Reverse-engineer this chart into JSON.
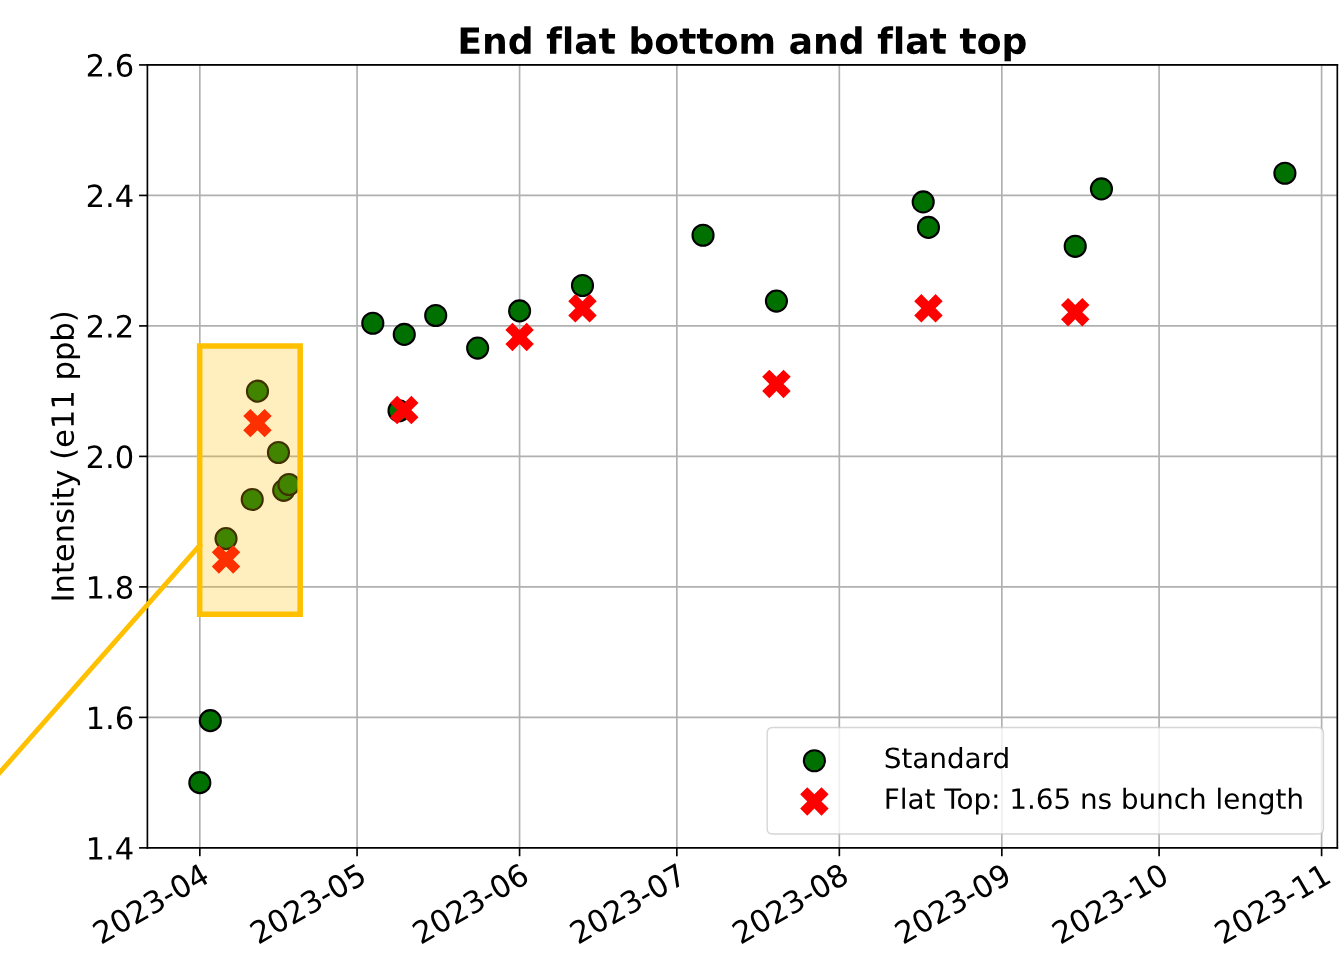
{
  "chart_data": {
    "type": "scatter",
    "title": "End flat bottom and flat top",
    "ylabel": "Intensity (e11 ppb)",
    "xlim": [
      "2023-03-22",
      "2023-11-04"
    ],
    "xticks": [
      {
        "value": "2023-04-01",
        "label": "2023-04"
      },
      {
        "value": "2023-05-01",
        "label": "2023-05"
      },
      {
        "value": "2023-06-01",
        "label": "2023-06"
      },
      {
        "value": "2023-07-01",
        "label": "2023-07"
      },
      {
        "value": "2023-08-01",
        "label": "2023-08"
      },
      {
        "value": "2023-09-01",
        "label": "2023-09"
      },
      {
        "value": "2023-10-01",
        "label": "2023-10"
      },
      {
        "value": "2023-11-01",
        "label": "2023-11"
      }
    ],
    "ylim": [
      1.4,
      2.6
    ],
    "yticks": [
      1.4,
      1.6,
      1.8,
      {
        "value": 2.0,
        "label": "2.0"
      },
      2.2,
      2.4,
      2.6
    ],
    "grid": true,
    "legend": "bottom right",
    "series": [
      {
        "name": "Standard",
        "color": "#007000",
        "marker": "circle",
        "x": [
          "2023-04-01",
          "2023-04-03",
          "2023-04-06",
          "2023-04-11",
          "2023-04-12",
          "2023-04-16",
          "2023-04-17",
          "2023-04-18",
          "2023-05-04",
          "2023-05-09",
          "2023-05-10",
          "2023-05-16",
          "2023-05-24",
          "2023-06-01",
          "2023-06-13",
          "2023-07-06",
          "2023-07-20",
          "2023-08-17",
          "2023-08-18",
          "2023-09-15",
          "2023-09-20",
          "2023-10-25"
        ],
        "values": [
          1.5,
          1.595,
          1.874,
          1.934,
          2.1,
          2.006,
          1.948,
          1.957,
          2.204,
          2.07,
          2.187,
          2.216,
          2.166,
          2.223,
          2.262,
          2.339,
          2.238,
          2.39,
          2.351,
          2.322,
          2.41,
          2.434
        ]
      },
      {
        "name": "Flat Top: 1.65 ns bunch length",
        "color": "#ff0000",
        "marker": "cross",
        "x": [
          "2023-04-06",
          "2023-04-12",
          "2023-05-10",
          "2023-06-01",
          "2023-06-13",
          "2023-07-20",
          "2023-08-18",
          "2023-09-15"
        ],
        "values": [
          1.842,
          2.051,
          2.071,
          2.183,
          2.227,
          2.111,
          2.227,
          2.221
        ]
      }
    ]
  }
}
